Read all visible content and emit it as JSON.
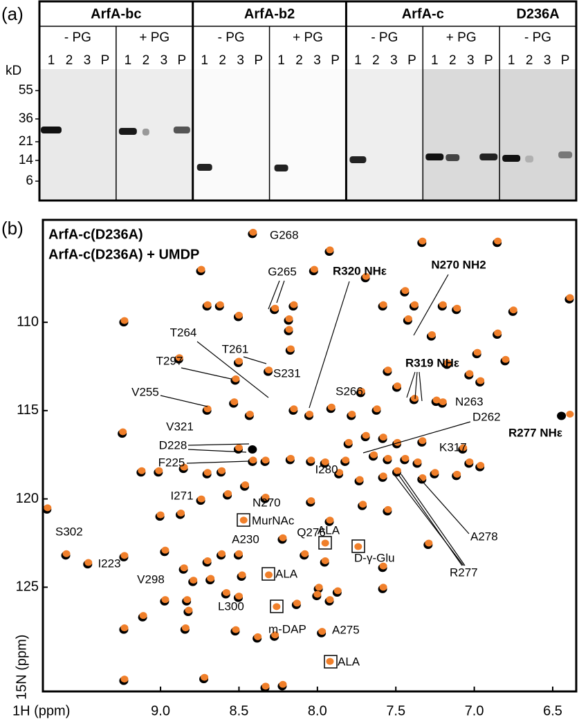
{
  "panel_a": {
    "label": "(a)",
    "groups": [
      {
        "name": "ArfA-bc",
        "conditions": [
          "- PG",
          "+ PG"
        ]
      },
      {
        "name": "ArfA-b2",
        "conditions": [
          "- PG",
          "+ PG"
        ]
      },
      {
        "name": "ArfA-c",
        "conditions": [
          "- PG",
          "+ PG"
        ]
      },
      {
        "name": "D236A",
        "conditions": [
          "- PG"
        ]
      }
    ],
    "lanes": [
      "1",
      "2",
      "3",
      "P"
    ],
    "unit": "kD",
    "markers": [
      "55",
      "36",
      "21",
      "14",
      "6"
    ]
  },
  "chart_data": {
    "type": "scatter",
    "panel_label": "(b)",
    "x_label": "1H (ppm)",
    "y_label": "15N (ppm)",
    "xlim": [
      9.75,
      6.35
    ],
    "ylim": [
      130.9,
      104.2
    ],
    "xticks": [
      {
        "value": 9,
        "label": "9.0"
      },
      8.5,
      {
        "value": 8,
        "label": "8.0"
      },
      7.5,
      {
        "value": 7,
        "label": "7.0"
      },
      6.5
    ],
    "yticks": [
      110,
      115,
      120,
      125
    ],
    "series": [
      {
        "name": "ArfA-c(D236A)",
        "color": "#000000",
        "x": [
          8.41,
          7.92,
          7.33,
          6.85,
          8.74,
          8.02,
          7.69,
          7.44,
          8.7,
          8.62,
          8.5,
          8.15,
          8.27,
          8.18,
          9.23,
          7.58,
          7.38,
          7.2,
          7.11,
          6.75,
          6.39,
          8.88,
          8.5,
          8.52,
          8.31,
          8.17,
          8.18,
          7.42,
          7.27,
          6.98,
          6.85,
          6.8,
          7.17,
          7.03,
          7.55,
          7.72,
          7.49,
          7.24,
          6.96,
          7.91,
          8.53,
          8.7,
          8.43,
          8.15,
          8.05,
          7.38,
          7.2,
          7.78,
          7.62,
          7.8,
          7.69,
          7.58,
          7.49,
          7.33,
          7.07,
          9.24,
          8.5,
          8.61,
          9.12,
          9.01,
          8.85,
          8.7,
          8.41,
          8.33,
          8.17,
          8.04,
          7.95,
          7.82,
          7.64,
          7.55,
          7.44,
          7.36,
          7.03,
          6.96,
          7.86,
          7.73,
          7.58,
          7.49,
          7.33,
          7.25,
          7.11,
          8.46,
          8.04,
          8.33,
          8.57,
          8.74,
          9.0,
          8.87,
          9.72,
          7.92,
          7.71,
          7.55,
          8.22,
          8.08,
          7.95,
          7.58,
          7.29,
          9.6,
          9.46,
          9.23,
          8.97,
          8.85,
          8.7,
          8.61,
          8.5,
          8.79,
          8.48,
          8.68,
          7.99,
          7.87,
          7.58,
          8.83,
          8.82,
          8.97,
          8.58,
          8.5,
          8.13,
          8.0,
          7.92,
          9.11,
          9.23,
          8.84,
          8.52,
          8.38,
          8.27,
          7.97,
          9.23,
          8.72,
          8.33,
          8.22,
          6.44,
          8.41
        ],
        "y": [
          105.0,
          106.0,
          105.5,
          105.5,
          107.1,
          107.1,
          107.5,
          108.3,
          109.1,
          109.1,
          109.7,
          109.1,
          109.3,
          109.9,
          110.0,
          109.1,
          109.1,
          109.1,
          109.3,
          109.4,
          108.7,
          112.1,
          112.3,
          113.3,
          112.8,
          111.6,
          110.5,
          109.9,
          110.8,
          111.8,
          110.7,
          112.2,
          112.4,
          113.0,
          112.8,
          114.0,
          113.7,
          114.5,
          113.4,
          114.9,
          114.6,
          115.0,
          115.3,
          115.0,
          115.3,
          114.4,
          114.6,
          115.3,
          115.0,
          116.9,
          116.5,
          116.6,
          116.9,
          116.8,
          117.2,
          116.3,
          117.2,
          118.5,
          118.5,
          118.5,
          118.3,
          118.6,
          117.9,
          117.9,
          117.8,
          117.9,
          118.0,
          117.9,
          117.6,
          117.8,
          117.8,
          118.0,
          118.0,
          118.2,
          118.6,
          119.0,
          118.8,
          118.5,
          118.9,
          118.6,
          118.7,
          119.3,
          120.2,
          120.0,
          119.8,
          120.1,
          121.0,
          120.9,
          120.6,
          121.3,
          120.4,
          120.7,
          122.3,
          123.2,
          123.6,
          123.9,
          122.6,
          123.2,
          123.7,
          123.3,
          123.0,
          124.0,
          123.6,
          123.2,
          123.2,
          124.7,
          124.4,
          124.6,
          125.1,
          125.3,
          125.1,
          125.8,
          126.4,
          125.8,
          125.4,
          125.6,
          126.0,
          125.5,
          125.8,
          126.7,
          127.4,
          127.4,
          127.5,
          127.9,
          127.8,
          127.6,
          130.3,
          130.2,
          130.7,
          130.6,
          115.3,
          117.2
        ]
      },
      {
        "name": "ArfA-c(D236A) + UMDP",
        "color": "#f07f2a",
        "x": [
          8.41,
          7.92,
          7.33,
          6.85,
          8.74,
          8.02,
          7.69,
          7.44,
          8.7,
          8.62,
          8.5,
          8.15,
          8.27,
          8.18,
          9.23,
          7.58,
          7.38,
          7.2,
          7.11,
          6.75,
          6.39,
          8.88,
          8.5,
          8.52,
          8.31,
          8.17,
          8.18,
          7.42,
          7.27,
          6.98,
          6.85,
          6.8,
          7.17,
          7.03,
          7.55,
          7.72,
          7.49,
          7.24,
          6.96,
          7.91,
          8.53,
          8.7,
          8.43,
          8.15,
          8.05,
          7.38,
          7.2,
          7.78,
          7.62,
          7.8,
          7.69,
          7.58,
          7.49,
          7.33,
          7.07,
          9.24,
          8.5,
          8.61,
          9.12,
          9.01,
          8.85,
          8.7,
          8.41,
          8.33,
          8.17,
          8.04,
          7.95,
          7.82,
          7.64,
          7.55,
          7.44,
          7.36,
          7.03,
          6.96,
          7.86,
          7.73,
          7.58,
          7.49,
          7.33,
          7.25,
          7.11,
          8.46,
          8.04,
          8.33,
          8.57,
          8.74,
          9.0,
          8.87,
          9.72,
          8.47,
          7.92,
          7.71,
          7.55,
          8.22,
          7.95,
          8.08,
          7.95,
          7.74,
          7.58,
          7.29,
          9.6,
          9.46,
          9.23,
          8.97,
          8.85,
          8.7,
          8.61,
          8.5,
          8.79,
          8.31,
          8.48,
          8.68,
          7.99,
          7.87,
          7.58,
          8.83,
          8.82,
          8.97,
          8.58,
          8.5,
          8.26,
          8.13,
          8.0,
          7.92,
          9.11,
          9.23,
          8.84,
          8.52,
          8.38,
          8.27,
          7.97,
          7.92,
          9.23,
          8.72,
          8.33,
          8.22,
          6.39
        ],
        "y": [
          104.9,
          105.9,
          105.4,
          105.4,
          107.0,
          107.0,
          107.4,
          108.2,
          109.0,
          109.0,
          109.6,
          109.0,
          109.2,
          109.8,
          109.9,
          109.0,
          109.0,
          109.0,
          109.2,
          109.3,
          108.6,
          112.0,
          112.2,
          113.2,
          112.7,
          111.5,
          110.4,
          109.8,
          110.7,
          111.7,
          110.6,
          112.1,
          112.3,
          112.9,
          112.7,
          113.9,
          113.6,
          114.4,
          113.3,
          114.8,
          114.5,
          114.9,
          115.2,
          114.9,
          115.2,
          114.3,
          114.5,
          115.2,
          114.9,
          116.8,
          116.4,
          116.5,
          116.8,
          116.7,
          117.1,
          116.2,
          117.1,
          118.4,
          118.4,
          118.4,
          118.2,
          118.5,
          117.8,
          117.8,
          117.7,
          117.8,
          117.9,
          117.8,
          117.5,
          117.7,
          117.7,
          117.9,
          117.9,
          118.1,
          118.5,
          118.9,
          118.7,
          118.4,
          118.8,
          118.5,
          118.6,
          119.2,
          120.1,
          119.9,
          119.7,
          120.0,
          120.9,
          120.8,
          120.5,
          121.2,
          121.2,
          120.3,
          120.6,
          122.2,
          122.5,
          123.1,
          123.5,
          122.7,
          123.8,
          122.5,
          123.1,
          123.6,
          123.2,
          122.9,
          123.9,
          123.5,
          123.1,
          123.1,
          124.6,
          124.3,
          124.3,
          124.5,
          125.0,
          125.2,
          125.0,
          125.7,
          126.3,
          125.7,
          125.3,
          125.5,
          126.1,
          125.9,
          125.4,
          125.7,
          126.6,
          127.3,
          127.3,
          127.4,
          127.8,
          127.7,
          127.5,
          129.2,
          130.2,
          130.1,
          130.6,
          130.5,
          115.2
        ]
      }
    ],
    "annotations": [
      "G268",
      "G265",
      "R320 NHε",
      "N270 NH2",
      "T264",
      "T261",
      "T297",
      "S231",
      "V255",
      "R319 NHε",
      "S266",
      "N263",
      "R277 NHε",
      "D262",
      "V321",
      "D228",
      "F225",
      "K317",
      "I280",
      "I271",
      "N270",
      "S302",
      "A278",
      "MurNAc",
      "Q276",
      "ALA",
      "A230",
      "D-γ-Glu",
      "R277",
      "I223",
      "ALA",
      "V298",
      "L300",
      "m-DAP",
      "A275",
      "ALA"
    ]
  }
}
